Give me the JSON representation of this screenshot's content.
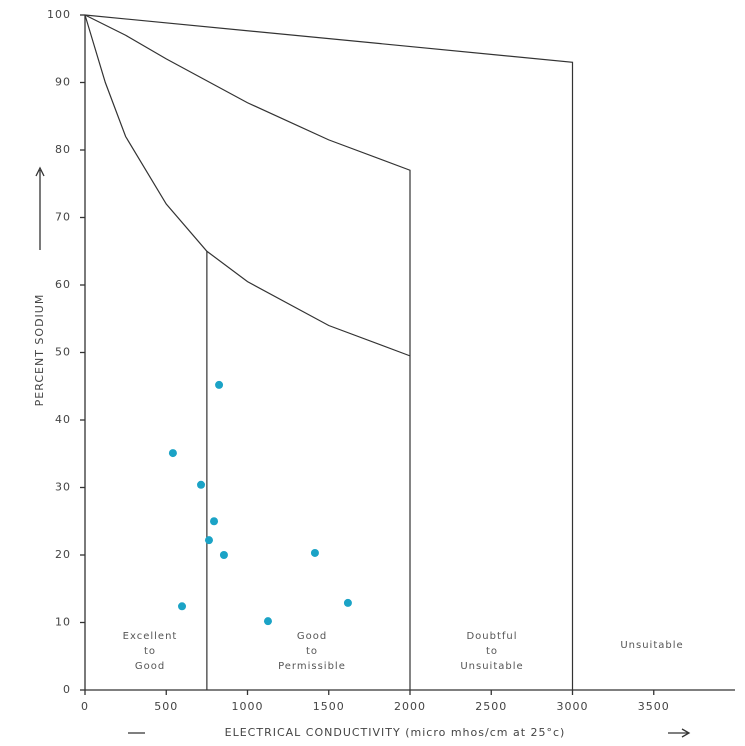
{
  "chart_data": {
    "type": "scatter",
    "x_label": "ELECTRICAL CONDUCTIVITY (micro mhos/cm at 25°c)",
    "y_label": "PERCENT SODIUM",
    "xlim": [
      0,
      4000
    ],
    "ylim": [
      0,
      100
    ],
    "xticks": [
      0,
      500,
      1000,
      1500,
      2000,
      2500,
      3000,
      3500
    ],
    "yticks": [
      0,
      10,
      20,
      30,
      40,
      50,
      60,
      70,
      80,
      90,
      100
    ],
    "color": "#1ba3c6",
    "x": [
      541,
      714,
      825,
      794,
      763,
      855,
      597,
      1126,
      1415,
      1618
    ],
    "values": [
      35.1,
      30.4,
      45.2,
      25,
      22.2,
      20,
      12.4,
      10.2,
      20.3,
      12.9
    ],
    "boundaries": [
      {
        "x": [
          0,
          3000,
          3000
        ],
        "y": [
          100,
          93,
          0
        ]
      },
      {
        "x": [
          0,
          250,
          500,
          1000,
          1500,
          2000,
          2000
        ],
        "y": [
          100,
          97,
          93.5,
          87,
          81.5,
          77,
          0
        ]
      },
      {
        "x": [
          0,
          125,
          250,
          500,
          750,
          1000,
          1500,
          2000
        ],
        "y": [
          100,
          90,
          82,
          72,
          65,
          60.5,
          54,
          49.5
        ]
      },
      {
        "x": [
          750,
          750
        ],
        "y": [
          65,
          0
        ]
      }
    ],
    "zones": [
      [
        "Excellent",
        "to",
        "Good"
      ],
      [
        "Good",
        "to",
        "Permissible"
      ],
      [
        "Doubtful",
        "to",
        "Unsuitable"
      ],
      [
        "Unsuitable"
      ]
    ]
  }
}
